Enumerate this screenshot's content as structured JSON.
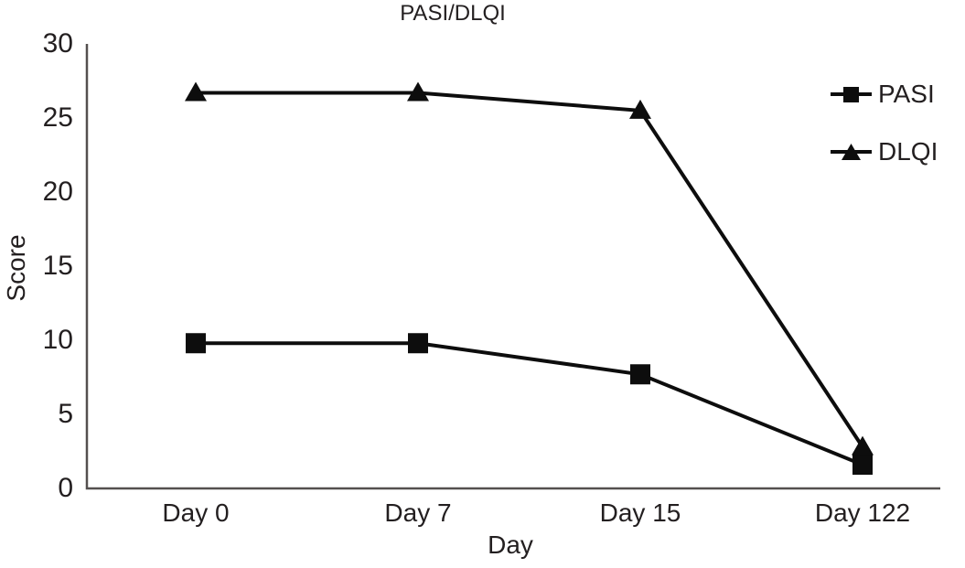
{
  "chart_data": {
    "type": "line",
    "title": "PASI/DLQI",
    "xlabel": "Day",
    "ylabel": "Score",
    "categories": [
      "Day 0",
      "Day 7",
      "Day 15",
      "Day 122"
    ],
    "series": [
      {
        "name": "PASI",
        "marker": "square",
        "values": [
          9.8,
          9.8,
          7.7,
          1.6
        ]
      },
      {
        "name": "DLQI",
        "marker": "triangle",
        "values": [
          26.7,
          26.7,
          25.5,
          2.8
        ]
      }
    ],
    "ylim": [
      0,
      30
    ],
    "yticks": [
      0,
      5,
      10,
      15,
      20,
      25,
      30
    ],
    "grid": false,
    "legend_position": "top-right",
    "line_color": "#0d0d0d",
    "axis_color": "#54504f",
    "text_color": "#231f20"
  }
}
